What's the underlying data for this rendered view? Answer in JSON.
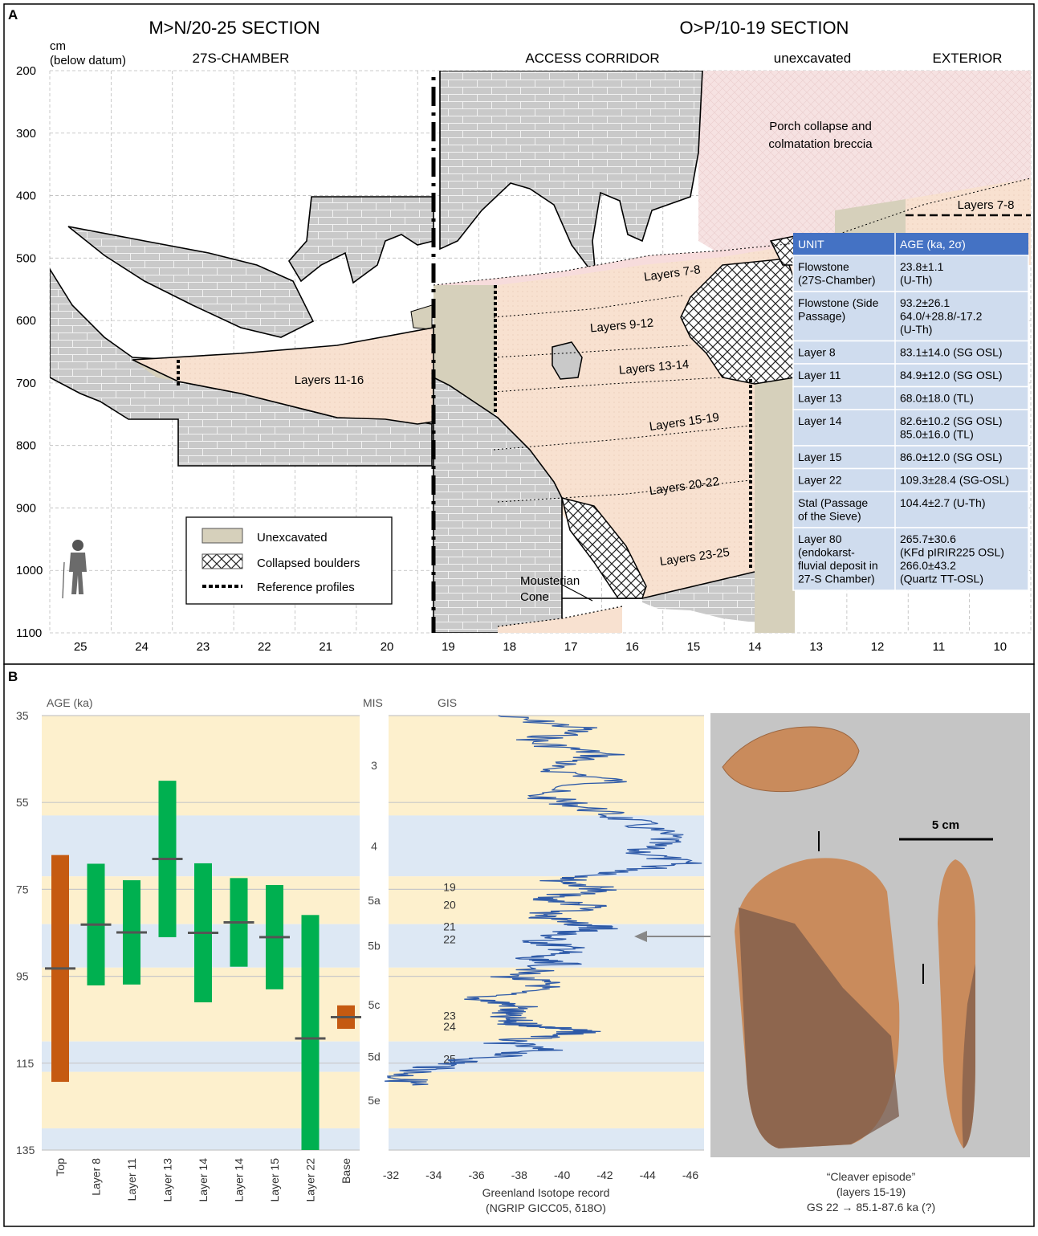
{
  "panel_a": {
    "letter": "A",
    "left_title": "M>N/20-25 SECTION",
    "right_title": "O>P/10-19 SECTION",
    "depth_unit": "cm",
    "depth_unit_note": "(below datum)",
    "zones": [
      "27S-CHAMBER",
      "ACCESS CORRIDOR",
      "unexcavated",
      "EXTERIOR"
    ],
    "depth_ticks": [
      "200",
      "300",
      "400",
      "500",
      "600",
      "700",
      "800",
      "900",
      "1000",
      "1100"
    ],
    "grid_columns": [
      "25",
      "24",
      "23",
      "22",
      "21",
      "20",
      "19",
      "18",
      "17",
      "16",
      "15",
      "14",
      "13",
      "12",
      "11",
      "10"
    ],
    "layer_labels": [
      "Layers 11-16",
      "Layers 7-8",
      "Layers 9-12",
      "Layers 13-14",
      "Layers 15-19",
      "Layers 20-22",
      "Layers 23-25",
      "Layers 7-8"
    ],
    "annotations": {
      "porch": [
        "Porch collapse and",
        "colmatation breccia"
      ],
      "mousterian": [
        "Mousterian",
        "Cone"
      ]
    },
    "legend": [
      {
        "label": "Unexcavated",
        "key": "unexcavated"
      },
      {
        "label": "Collapsed boulders",
        "key": "boulders"
      },
      {
        "label": "Reference profiles",
        "key": "profiles"
      }
    ],
    "table": {
      "header": [
        "UNIT",
        "AGE (ka, 2σ)"
      ],
      "rows": [
        {
          "unit": "Flowstone\n(27S-Chamber)",
          "age": "23.8±1.1\n(U-Th)"
        },
        {
          "unit": "Flowstone (Side\nPassage)",
          "age": "93.2±26.1\n64.0/+28.8/-17.2\n(U-Th)"
        },
        {
          "unit": "Layer 8",
          "age": "83.1±14.0 (SG OSL)"
        },
        {
          "unit": "Layer 11",
          "age": "84.9±12.0 (SG OSL)"
        },
        {
          "unit": "Layer 13",
          "age": "68.0±18.0 (TL)"
        },
        {
          "unit": "Layer 14",
          "age": "82.6±10.2 (SG OSL)\n85.0±16.0 (TL)"
        },
        {
          "unit": "Layer 15",
          "age": "86.0±12.0 (SG OSL)"
        },
        {
          "unit": "Layer 22",
          "age": "109.3±28.4 (SG-OSL)"
        },
        {
          "unit": "Stal (Passage\nof the Sieve)",
          "age": "104.4±2.7 (U-Th)"
        },
        {
          "unit": "Layer 80\n(endokarst-\nfluvial deposit in\n27-S Chamber)",
          "age": "265.7±30.6\n(KFd pIRIR225 OSL)\n266.0±43.2\n(Quartz TT-OSL)"
        }
      ]
    },
    "colors": {
      "rock": "#c9c9c9",
      "sediment": "#f8e1d0",
      "unexcavated": "#d6d0bb",
      "table_header": "#4472c4",
      "table_row": "#cfdcee"
    }
  },
  "panel_b": {
    "letter": "B",
    "age_axis_label": "AGE (ka)",
    "mis_label": "MIS",
    "gis_label": "GIS",
    "mis_stages": [
      "3",
      "4",
      "5a",
      "5b",
      "5c",
      "5d",
      "5e"
    ],
    "gis_numbers": [
      "19",
      "20",
      "21",
      "22",
      "23",
      "24",
      "25"
    ],
    "isotope_xticks": [
      "-32",
      "-34",
      "-36",
      "-38",
      "-40",
      "-42",
      "-44",
      "-46"
    ],
    "isotope_xlabel": [
      "Greenland Isotope record",
      "(NGRIP GICC05, δ18O)"
    ],
    "scale_bar": "5 cm",
    "caption": [
      "“Cleaver episode”",
      "(layers 15-19)",
      "GS 22 → 85.1-87.6 ka (?)"
    ],
    "colors": {
      "warm": "#fdf0cd",
      "cold": "#dde8f4",
      "green": "#00b050",
      "orange": "#c55a11",
      "isotope": "#2e5aa8",
      "photo_bg": "#c5c5c5"
    }
  },
  "chart_data": {
    "type": "bar",
    "title": "",
    "ylabel": "AGE (ka)",
    "ylim": [
      35,
      135
    ],
    "yticks": [
      35,
      55,
      75,
      95,
      115,
      135
    ],
    "y_inverted": true,
    "categories": [
      "Top",
      "Layer 8",
      "Layer 11",
      "Layer 13",
      "Layer 14",
      "Layer 14",
      "Layer 15",
      "Layer 22",
      "Base"
    ],
    "series": [
      {
        "values": [
          93.2,
          83.1,
          84.9,
          68.0,
          85.0,
          82.6,
          86.0,
          109.3,
          104.4
        ],
        "low": [
          67.1,
          69.1,
          72.9,
          50.0,
          69.0,
          72.4,
          74.0,
          80.9,
          101.7
        ],
        "high": [
          119.3,
          97.1,
          96.9,
          86.0,
          101.0,
          92.8,
          98.0,
          137.7,
          107.1
        ],
        "colors": [
          "#c55a11",
          "#00b050",
          "#00b050",
          "#00b050",
          "#00b050",
          "#00b050",
          "#00b050",
          "#00b050",
          "#c55a11"
        ]
      }
    ],
    "mis_bands": [
      {
        "stage": "3",
        "from": 35,
        "to": 58,
        "kind": "warm"
      },
      {
        "stage": "4",
        "from": 58,
        "to": 72,
        "kind": "cold"
      },
      {
        "stage": "5a",
        "from": 72,
        "to": 83,
        "kind": "warm"
      },
      {
        "stage": "5b",
        "from": 83,
        "to": 93,
        "kind": "cold"
      },
      {
        "stage": "5c",
        "from": 93,
        "to": 110,
        "kind": "warm"
      },
      {
        "stage": "5d",
        "from": 110,
        "to": 117,
        "kind": "cold"
      },
      {
        "stage": "5e",
        "from": 117,
        "to": 130,
        "kind": "warm"
      },
      {
        "stage": "",
        "from": 130,
        "to": 135,
        "kind": "cold"
      }
    ],
    "isotope_record": {
      "xlim": [
        -32,
        -46
      ],
      "x_reversed": true,
      "points": [
        [
          -37,
          35
        ],
        [
          -41,
          38
        ],
        [
          -38.5,
          41
        ],
        [
          -42,
          44
        ],
        [
          -39,
          47
        ],
        [
          -42.5,
          50
        ],
        [
          -38.5,
          53
        ],
        [
          -41,
          56
        ],
        [
          -43,
          59
        ],
        [
          -45,
          63
        ],
        [
          -43.5,
          66
        ],
        [
          -45.5,
          69
        ],
        [
          -43,
          71
        ],
        [
          -40,
          73
        ],
        [
          -42,
          75
        ],
        [
          -39,
          77
        ],
        [
          -41.5,
          79
        ],
        [
          -38.5,
          81
        ],
        [
          -41,
          83
        ],
        [
          -42,
          84
        ],
        [
          -40,
          85
        ],
        [
          -39,
          87
        ],
        [
          -40.5,
          89
        ],
        [
          -38,
          91
        ],
        [
          -40,
          92
        ],
        [
          -37.5,
          95
        ],
        [
          -39.5,
          97
        ],
        [
          -36,
          100
        ],
        [
          -38,
          102
        ],
        [
          -37,
          104
        ],
        [
          -38,
          106
        ],
        [
          -40,
          107
        ],
        [
          -41,
          108
        ],
        [
          -37,
          110
        ],
        [
          -39,
          112
        ],
        [
          -36,
          114
        ],
        [
          -34,
          116
        ],
        [
          -32.5,
          118
        ],
        [
          -33,
          120
        ]
      ]
    }
  }
}
